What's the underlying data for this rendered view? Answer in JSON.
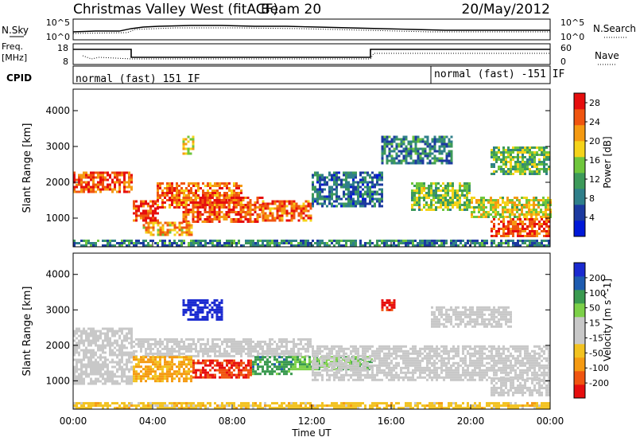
{
  "header": {
    "title": "Christmas Valley West (fitACF)",
    "beam": "Beam 20",
    "date": "20/May/2012"
  },
  "nsky_panel": {
    "left_label_line1": "N.Sky",
    "left_ticks": [
      "10^5",
      "10^0"
    ],
    "right_ticks": [
      "10^5",
      "10^0"
    ],
    "right_label": "N.Search"
  },
  "freq_panel": {
    "left_label_line1": "Freq.",
    "left_label_line2": "[MHz]",
    "left_ticks": [
      "18",
      "8"
    ],
    "right_ticks": [
      "60",
      "0"
    ],
    "right_label": "Nave"
  },
  "cpid_panel": {
    "label": "CPID",
    "segments": [
      "normal (fast) 151 IF",
      "normal (fast) -151 IF"
    ]
  },
  "colors": {
    "power_scale": [
      "#0018d8",
      "#1c3aa0",
      "#2f7f8a",
      "#3d9a5a",
      "#6fc63c",
      "#f5d31a",
      "#f59a12",
      "#f05510",
      "#e60e0e"
    ],
    "velocity_scale": [
      "#e60e0e",
      "#f05510",
      "#f59a12",
      "#f2c220",
      "#c8c8c8",
      "#c8c8c8",
      "#7cd048",
      "#3a9a50",
      "#1e5cb0",
      "#1a2ad0"
    ],
    "ground_scatter": "#c8c8c8"
  },
  "chart_data": [
    {
      "type": "heatmap",
      "name": "power",
      "xlabel": "",
      "ylabel": "Slant Range [km]",
      "x_ticks": [
        "00:00",
        "04:00",
        "08:00",
        "12:00",
        "16:00",
        "20:00",
        "00:00"
      ],
      "y_ticks": [
        "1000",
        "2000",
        "3000",
        "4000"
      ],
      "ylim": [
        200,
        4600
      ],
      "xlim_hours": [
        0,
        24
      ],
      "colorbar": {
        "label": "Power [dB]",
        "ticks": [
          "4",
          "8",
          "12",
          "16",
          "20",
          "24",
          "28"
        ],
        "range": [
          0,
          30
        ]
      },
      "scatter_regions": [
        {
          "t0": 0.0,
          "t1": 3.0,
          "r0": 1700,
          "r1": 2300,
          "level": 0.85
        },
        {
          "t0": 3.0,
          "t1": 4.3,
          "r0": 900,
          "r1": 1500,
          "level": 0.9
        },
        {
          "t0": 4.2,
          "t1": 8.5,
          "r0": 1300,
          "r1": 2000,
          "level": 0.8
        },
        {
          "t0": 5.5,
          "t1": 9.5,
          "r0": 900,
          "r1": 1600,
          "level": 0.85
        },
        {
          "t0": 9.5,
          "t1": 12.0,
          "r0": 900,
          "r1": 1500,
          "level": 0.8
        },
        {
          "t0": 3.5,
          "t1": 6.0,
          "r0": 500,
          "r1": 900,
          "level": 0.7
        },
        {
          "t0": 12.0,
          "t1": 15.5,
          "r0": 1300,
          "r1": 2300,
          "level": 0.25
        },
        {
          "t0": 15.5,
          "t1": 19.0,
          "r0": 2500,
          "r1": 3300,
          "level": 0.3
        },
        {
          "t0": 17.0,
          "t1": 20.0,
          "r0": 1200,
          "r1": 2000,
          "level": 0.5
        },
        {
          "t0": 20.0,
          "t1": 24.0,
          "r0": 1000,
          "r1": 1600,
          "level": 0.6
        },
        {
          "t0": 21.0,
          "t1": 24.0,
          "r0": 500,
          "r1": 1000,
          "level": 0.85
        },
        {
          "t0": 21.0,
          "t1": 24.0,
          "r0": 2200,
          "r1": 3000,
          "level": 0.45
        },
        {
          "t0": 5.5,
          "t1": 6.0,
          "r0": 2800,
          "r1": 3300,
          "level": 0.6
        },
        {
          "t0": 0.0,
          "t1": 24.0,
          "r0": 250,
          "r1": 400,
          "level": 0.3
        }
      ]
    },
    {
      "type": "heatmap",
      "name": "velocity",
      "xlabel": "Time UT",
      "ylabel": "Slant Range [km]",
      "x_ticks": [
        "00:00",
        "04:00",
        "08:00",
        "12:00",
        "16:00",
        "20:00",
        "00:00"
      ],
      "y_ticks": [
        "1000",
        "2000",
        "3000",
        "4000"
      ],
      "ylim": [
        200,
        4600
      ],
      "xlim_hours": [
        0,
        24
      ],
      "colorbar": {
        "label": "Velocity [m s^-1]",
        "ticks": [
          "200",
          "100",
          "50",
          "15",
          "-15",
          "-50",
          "-100",
          "-200"
        ],
        "range": [
          -250,
          250
        ]
      },
      "scatter_regions": [
        {
          "t0": 0.0,
          "t1": 3.0,
          "r0": 900,
          "r1": 2500,
          "level": 0.0
        },
        {
          "t0": 3.0,
          "t1": 12.0,
          "r0": 1700,
          "r1": 2200,
          "level": 0.0
        },
        {
          "t0": 3.0,
          "t1": 6.0,
          "r0": 1000,
          "r1": 1700,
          "level": -0.45
        },
        {
          "t0": 6.0,
          "t1": 9.0,
          "r0": 1100,
          "r1": 1600,
          "level": -0.8
        },
        {
          "t0": 9.0,
          "t1": 11.0,
          "r0": 1200,
          "r1": 1700,
          "level": 0.5
        },
        {
          "t0": 11.0,
          "t1": 15.0,
          "r0": 1300,
          "r1": 1700,
          "level": 0.35
        },
        {
          "t0": 15.5,
          "t1": 16.2,
          "r0": 3000,
          "r1": 3300,
          "level": -0.9
        },
        {
          "t0": 5.5,
          "t1": 7.5,
          "r0": 2700,
          "r1": 3300,
          "level": 0.95
        },
        {
          "t0": 12.0,
          "t1": 24.0,
          "r0": 1000,
          "r1": 2000,
          "level": 0.0
        },
        {
          "t0": 18.0,
          "t1": 22.0,
          "r0": 2500,
          "r1": 3100,
          "level": 0.0
        },
        {
          "t0": 21.0,
          "t1": 24.0,
          "r0": 600,
          "r1": 1100,
          "level": 0.0
        },
        {
          "t0": 0.0,
          "t1": 24.0,
          "r0": 250,
          "r1": 400,
          "level": -0.3
        }
      ]
    }
  ]
}
